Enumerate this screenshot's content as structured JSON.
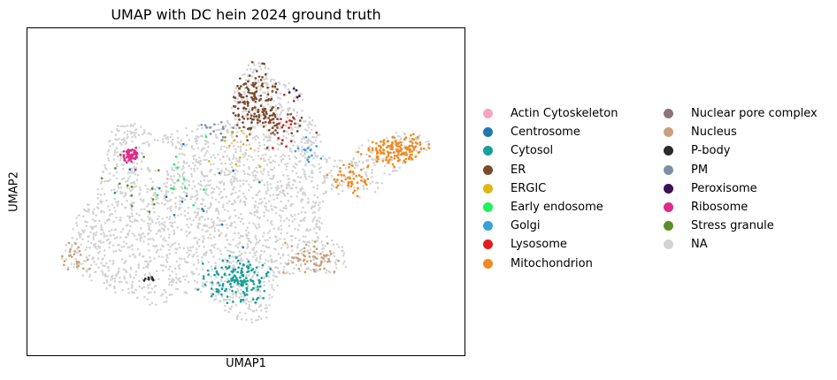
{
  "chart_data": {
    "type": "scatter",
    "title": "UMAP with DC hein 2024 ground truth",
    "xlabel": "UMAP1",
    "ylabel": "UMAP2",
    "xlim": [
      0,
      100
    ],
    "ylim": [
      0,
      100
    ],
    "grid": false,
    "legend_position": "right",
    "categories": [
      {
        "name": "Actin Cytoskeleton",
        "color": "#f4a6c0"
      },
      {
        "name": "Centrosome",
        "color": "#1f77b4"
      },
      {
        "name": "Cytosol",
        "color": "#17a19a"
      },
      {
        "name": "ER",
        "color": "#7b4a2c"
      },
      {
        "name": "ERGIC",
        "color": "#e2b613"
      },
      {
        "name": "Early endosome",
        "color": "#1ef25c"
      },
      {
        "name": "Golgi",
        "color": "#36a2d8"
      },
      {
        "name": "Lysosome",
        "color": "#e21d1d"
      },
      {
        "name": "Mitochondrion",
        "color": "#ef8b22"
      },
      {
        "name": "Nuclear pore complex",
        "color": "#8c7575"
      },
      {
        "name": "Nucleus",
        "color": "#c9a07c"
      },
      {
        "name": "P-body",
        "color": "#2a2a2a"
      },
      {
        "name": "PM",
        "color": "#7d8fa6"
      },
      {
        "name": "Peroxisome",
        "color": "#3b1253"
      },
      {
        "name": "Ribosome",
        "color": "#df2a87"
      },
      {
        "name": "Stress granule",
        "color": "#5b8f2a"
      },
      {
        "name": "NA",
        "color": "#d3d3d3"
      }
    ],
    "clusters": [
      {
        "category": "ER",
        "center": [
          52,
          82
        ],
        "spread": [
          5,
          10
        ],
        "count": 130
      },
      {
        "category": "ER",
        "center": [
          56,
          74
        ],
        "spread": [
          6,
          4
        ],
        "count": 60
      },
      {
        "category": "Cytosol",
        "center": [
          48,
          20
        ],
        "spread": [
          7,
          6
        ],
        "count": 150
      },
      {
        "category": "Mitochondrion",
        "center": [
          88,
          64
        ],
        "spread": [
          7,
          4
        ],
        "count": 150
      },
      {
        "category": "Mitochondrion",
        "center": [
          76,
          55
        ],
        "spread": [
          5,
          4
        ],
        "count": 50
      },
      {
        "category": "Ribosome",
        "center": [
          21.5,
          62.5
        ],
        "spread": [
          1.6,
          2.2
        ],
        "count": 55
      },
      {
        "category": "Nucleus",
        "center": [
          67,
          27
        ],
        "spread": [
          6,
          5
        ],
        "count": 60
      },
      {
        "category": "Nucleus",
        "center": [
          7,
          28
        ],
        "spread": [
          3,
          6
        ],
        "count": 25
      },
      {
        "category": "P-body",
        "center": [
          26.5,
          20.5
        ],
        "spread": [
          1.2,
          0.6
        ],
        "count": 10
      },
      {
        "category": "Lysosome",
        "center": [
          59,
          72
        ],
        "spread": [
          3,
          6
        ],
        "count": 14
      },
      {
        "category": "PM",
        "center": [
          43,
          72
        ],
        "spread": [
          5,
          4
        ],
        "count": 16
      },
      {
        "category": "Golgi",
        "center": [
          66,
          63
        ],
        "spread": [
          3,
          4
        ],
        "count": 14
      },
      {
        "category": "ERGIC",
        "center": [
          47,
          65
        ],
        "spread": [
          5,
          8
        ],
        "count": 12
      },
      {
        "category": "Early endosome",
        "center": [
          33,
          55
        ],
        "spread": [
          8,
          10
        ],
        "count": 12
      },
      {
        "category": "Stress granule",
        "center": [
          22,
          52
        ],
        "spread": [
          8,
          10
        ],
        "count": 14
      },
      {
        "category": "Centrosome",
        "center": [
          38,
          50
        ],
        "spread": [
          15,
          15
        ],
        "count": 14
      },
      {
        "category": "Peroxisome",
        "center": [
          64,
          84
        ],
        "spread": [
          2,
          3
        ],
        "count": 5
      },
      {
        "category": "Nuclear pore complex",
        "center": [
          52,
          70
        ],
        "spread": [
          6,
          6
        ],
        "count": 5
      },
      {
        "category": "Actin Cytoskeleton",
        "center": [
          45,
          55
        ],
        "spread": [
          12,
          12
        ],
        "count": 5
      }
    ],
    "background": {
      "category": "NA",
      "count": 2600
    }
  }
}
